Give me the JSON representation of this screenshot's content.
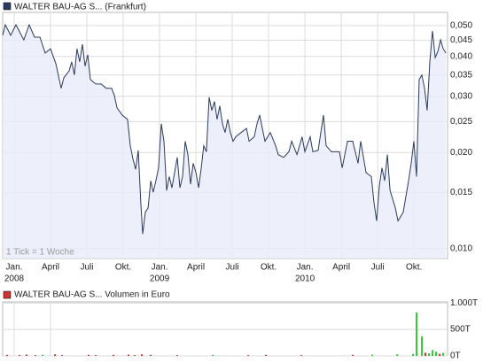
{
  "chart_data": [
    {
      "type": "line",
      "annotation": "1 Tick = 1 Woche",
      "log_y": true,
      "grid": true,
      "x": [
        -0.95,
        -0.73,
        -0.29,
        0.15,
        0.59,
        0.8,
        1.24,
        1.68,
        2.12,
        2.56,
        3.0,
        3.44,
        3.88,
        4.1,
        4.54,
        4.75,
        4.97,
        5.19,
        5.41,
        5.63,
        5.85,
        6.07,
        6.29,
        6.73,
        7.17,
        7.61,
        8.05,
        8.27,
        8.49,
        8.92,
        9.36,
        9.58,
        9.8,
        10.02,
        10.24,
        10.46,
        10.61,
        10.83,
        11.05,
        11.27,
        11.48,
        11.7,
        11.92,
        12.14,
        12.36,
        12.58,
        12.8,
        13.02,
        13.24,
        13.46,
        13.68,
        13.9,
        14.12,
        14.34,
        14.56,
        14.78,
        15.0,
        15.22,
        15.44,
        15.65,
        15.87,
        16.09,
        16.31,
        16.53,
        16.75,
        16.97,
        17.19,
        17.41,
        17.63,
        17.85,
        18.07,
        18.29,
        18.73,
        19.17,
        19.39,
        19.82,
        20.04,
        20.26,
        20.48,
        20.7,
        21.14,
        21.58,
        21.8,
        22.24,
        22.68,
        22.9,
        23.34,
        23.77,
        23.99,
        24.43,
        24.65,
        25.09,
        25.31,
        25.53,
        25.75,
        26.19,
        26.85,
        27.07,
        27.51,
        27.94,
        28.38,
        28.6,
        29.04,
        29.48,
        29.7,
        29.92,
        30.14,
        30.36,
        30.58,
        30.8,
        31.02,
        31.46,
        31.68,
        32.11,
        32.55,
        32.77,
        32.99,
        33.21,
        33.43,
        33.65,
        33.87,
        34.09,
        34.31,
        34.53,
        34.75,
        34.97,
        35.19,
        35.41,
        35.63
      ],
      "series": [
        {
          "name": "WALTER BAU-AG S... (Frankfurt)",
          "color": "#2b3a5c",
          "values": [
            0.0466,
            0.0503,
            0.0466,
            0.0503,
            0.0466,
            0.0451,
            0.0503,
            0.046,
            0.046,
            0.041,
            0.0423,
            0.038,
            0.0318,
            0.0343,
            0.0361,
            0.0385,
            0.035,
            0.0423,
            0.0385,
            0.0437,
            0.0373,
            0.0405,
            0.0339,
            0.0328,
            0.0328,
            0.0318,
            0.0318,
            0.0302,
            0.0276,
            0.0262,
            0.0254,
            0.021,
            0.0191,
            0.0177,
            0.0203,
            0.0137,
            0.0111,
            0.013,
            0.0134,
            0.0163,
            0.015,
            0.0163,
            0.0179,
            0.0246,
            0.0217,
            0.0152,
            0.0168,
            0.0155,
            0.0173,
            0.0193,
            0.0155,
            0.0168,
            0.0217,
            0.0197,
            0.0159,
            0.0185,
            0.0173,
            0.0155,
            0.0179,
            0.021,
            0.0201,
            0.0298,
            0.0271,
            0.0289,
            0.0254,
            0.028,
            0.0246,
            0.0231,
            0.0254,
            0.0231,
            0.0217,
            0.0224,
            0.0231,
            0.0238,
            0.0217,
            0.0224,
            0.0246,
            0.0262,
            0.0238,
            0.0217,
            0.0231,
            0.021,
            0.0197,
            0.0193,
            0.0201,
            0.0217,
            0.0197,
            0.0224,
            0.0201,
            0.0224,
            0.0201,
            0.0203,
            0.0231,
            0.0262,
            0.021,
            0.0201,
            0.0201,
            0.0179,
            0.0217,
            0.0217,
            0.0185,
            0.0217,
            0.0173,
            0.0168,
            0.0139,
            0.0122,
            0.0157,
            0.0179,
            0.0163,
            0.0197,
            0.0152,
            0.0134,
            0.0122,
            0.013,
            0.0163,
            0.0185,
            0.0217,
            0.0168,
            0.0339,
            0.035,
            0.0318,
            0.0271,
            0.0385,
            0.0481,
            0.0397,
            0.0415,
            0.0451,
            0.0423,
            0.041
          ]
        }
      ],
      "xlim": [
        -0.95,
        35.77
      ],
      "xticks": [
        {
          "value": 0,
          "label": "Jan."
        },
        {
          "value": 3,
          "label": "April"
        },
        {
          "value": 6,
          "label": "Juli"
        },
        {
          "value": 9,
          "label": "Okt."
        },
        {
          "value": 12,
          "label": "Jan."
        },
        {
          "value": 15,
          "label": "April"
        },
        {
          "value": 18,
          "label": "Juli"
        },
        {
          "value": 21,
          "label": "Okt."
        },
        {
          "value": 24,
          "label": "Jan."
        },
        {
          "value": 27,
          "label": "April"
        },
        {
          "value": 30,
          "label": "Juli"
        },
        {
          "value": 33,
          "label": "Okt."
        }
      ],
      "xyears": [
        {
          "value": 0,
          "label": "2008"
        },
        {
          "value": 12,
          "label": "2009"
        },
        {
          "value": 24,
          "label": "2010"
        }
      ],
      "ylim": [
        0.0093,
        0.055
      ],
      "yticks": [
        {
          "value": 0.01,
          "label": "0,010"
        },
        {
          "value": 0.015,
          "label": "0,015"
        },
        {
          "value": 0.02,
          "label": "0,020"
        },
        {
          "value": 0.025,
          "label": "0,025"
        },
        {
          "value": 0.03,
          "label": "0,030"
        },
        {
          "value": 0.035,
          "label": "0,035"
        },
        {
          "value": 0.04,
          "label": "0,040"
        },
        {
          "value": 0.045,
          "label": "0,045"
        },
        {
          "value": 0.05,
          "label": "0,050"
        }
      ]
    },
    {
      "type": "bar",
      "grid": true,
      "x": [
        -0.59,
        0.44,
        1.02,
        1.76,
        2.34,
        3.37,
        3.95,
        6.15,
        6.73,
        8.19,
        9.44,
        9.95,
        10.53,
        11.27,
        13.46,
        16.39,
        19.32,
        20.78,
        23.71,
        27.95,
        29.56,
        31.61,
        32.92,
        33.21,
        33.65,
        33.94,
        34.24,
        34.53,
        34.82,
        35.12,
        35.41
      ],
      "series": [
        {
          "name": "WALTER BAU-AG S... Volumen in Euro",
          "color": "#cc3333",
          "values": [
            20000,
            15000,
            25000,
            15000,
            20000,
            30000,
            15000,
            20000,
            15000,
            20000,
            25000,
            15000,
            30000,
            20000,
            15000,
            20000,
            15000,
            20000,
            15000,
            20000,
            25000,
            30000,
            40000,
            820000,
            370000,
            60000,
            50000,
            110000,
            80000,
            40000,
            60000
          ],
          "colors": [
            "#cc3333",
            "#cc3333",
            "#cc3333",
            "#cc3333",
            "#33cc33",
            "#cc3333",
            "#cc3333",
            "#cc3333",
            "#cc3333",
            "#cc3333",
            "#cc3333",
            "#cc3333",
            "#cc3333",
            "#cc3333",
            "#cc3333",
            "#33cc33",
            "#cc3333",
            "#cc3333",
            "#cc3333",
            "#cc3333",
            "#33cc33",
            "#33cc33",
            "#33cc33",
            "#33cc33",
            "#33cc33",
            "#cc3333",
            "#33cc33",
            "#33cc33",
            "#33cc33",
            "#cc3333",
            "#33cc33"
          ]
        }
      ],
      "xlim": [
        -0.95,
        35.77
      ],
      "xticks": [
        {
          "value": 0,
          "label": ""
        },
        {
          "value": 3,
          "label": ""
        }
      ],
      "ylim": [
        0,
        1020000
      ],
      "yticks": [
        {
          "value": 0,
          "label": "0T"
        },
        {
          "value": 500000,
          "label": "500T"
        },
        {
          "value": 1000000,
          "label": "1.000T"
        }
      ]
    }
  ]
}
